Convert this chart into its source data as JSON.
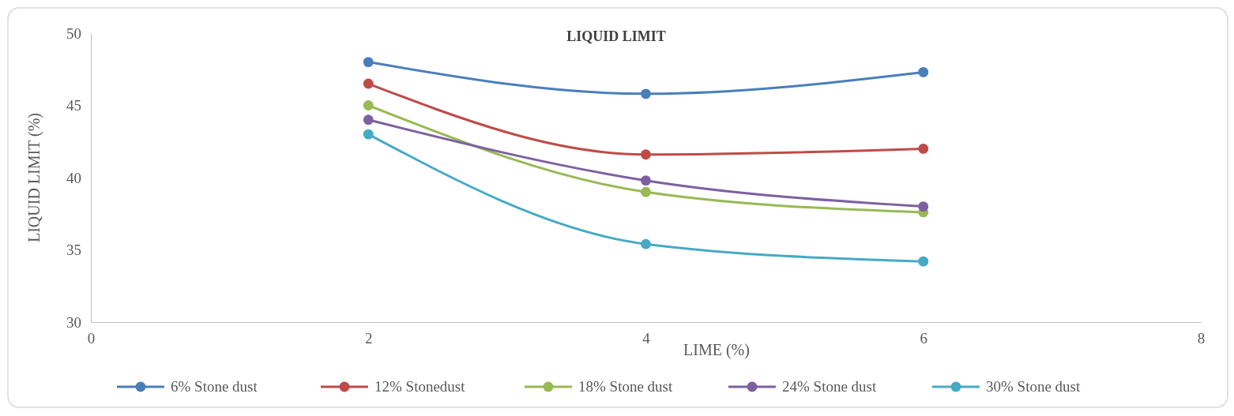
{
  "chart_data": {
    "type": "line",
    "title": "LIQUID LIMIT",
    "xlabel": "LIME (%)",
    "ylabel": "LIQUID LIMIT (%)",
    "x": [
      2,
      4,
      6
    ],
    "xlim": [
      0,
      8
    ],
    "xticks": [
      0,
      2,
      4,
      6,
      8
    ],
    "ylim": [
      30,
      50
    ],
    "yticks": [
      30,
      35,
      40,
      45,
      50
    ],
    "series": [
      {
        "name": "6% Stone dust",
        "color": "#4a7ebb",
        "values": [
          48,
          45.8,
          47.3
        ]
      },
      {
        "name": "12% Stonedust",
        "color": "#be4b48",
        "values": [
          46.5,
          41.6,
          42
        ]
      },
      {
        "name": "18% Stone dust",
        "color": "#98b954",
        "values": [
          45,
          39,
          37.6
        ]
      },
      {
        "name": "24% Stone dust",
        "color": "#7d60a0",
        "values": [
          44,
          39.8,
          38
        ]
      },
      {
        "name": "30% Stone dust",
        "color": "#46aac5",
        "values": [
          43,
          35.4,
          34.2
        ]
      }
    ],
    "marker": "circle",
    "line_style": "solid",
    "grid": false,
    "legend": "bottom"
  }
}
